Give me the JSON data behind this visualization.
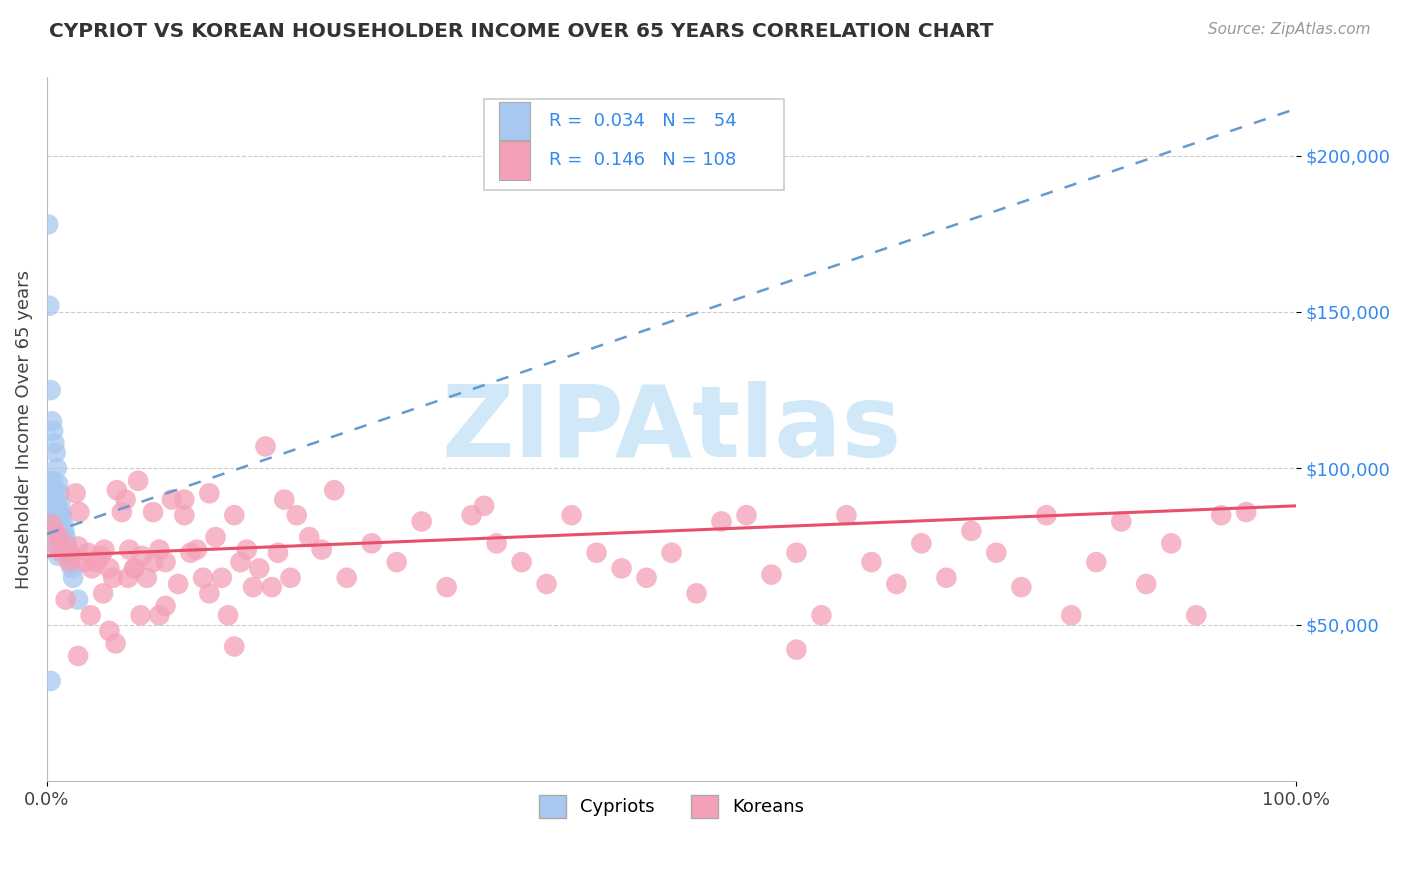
{
  "title": "CYPRIOT VS KOREAN HOUSEHOLDER INCOME OVER 65 YEARS CORRELATION CHART",
  "source": "Source: ZipAtlas.com",
  "ylabel": "Householder Income Over 65 years",
  "xlim": [
    0,
    1.0
  ],
  "ylim": [
    0,
    225000
  ],
  "yticks": [
    50000,
    100000,
    150000,
    200000
  ],
  "ytick_labels": [
    "$50,000",
    "$100,000",
    "$150,000",
    "$200,000"
  ],
  "legend_R_cypriot": "0.034",
  "legend_N_cypriot": "54",
  "legend_R_korean": "0.146",
  "legend_N_korean": "108",
  "color_cypriot": "#a8c8f0",
  "color_korean": "#f4a0b8",
  "color_trend_cypriot": "#6699cc",
  "color_trend_korean": "#e8506a",
  "color_title": "#333333",
  "color_source": "#999999",
  "color_ytick_labels": "#3388ee",
  "color_legend_values": "#3388ee",
  "watermark_text": "ZIPAtlas",
  "watermark_color": "#d0e8f8",
  "background_color": "#ffffff",
  "cypriot_x": [
    0.001,
    0.002,
    0.002,
    0.003,
    0.003,
    0.003,
    0.004,
    0.004,
    0.004,
    0.005,
    0.005,
    0.005,
    0.005,
    0.006,
    0.006,
    0.006,
    0.006,
    0.007,
    0.007,
    0.007,
    0.008,
    0.008,
    0.008,
    0.009,
    0.009,
    0.009,
    0.01,
    0.01,
    0.01,
    0.011,
    0.011,
    0.012,
    0.012,
    0.013,
    0.013,
    0.014,
    0.015,
    0.015,
    0.016,
    0.017,
    0.018,
    0.019,
    0.02,
    0.021,
    0.002,
    0.003,
    0.004,
    0.005,
    0.006,
    0.007,
    0.008,
    0.009,
    0.025,
    0.003
  ],
  "cypriot_y": [
    178000,
    152000,
    82000,
    125000,
    95000,
    88000,
    115000,
    92000,
    86000,
    112000,
    96000,
    90000,
    84000,
    108000,
    93000,
    88000,
    83000,
    105000,
    90000,
    85000,
    100000,
    88000,
    83000,
    95000,
    87000,
    82000,
    92000,
    86000,
    80000,
    88000,
    82000,
    85000,
    80000,
    83000,
    78000,
    80000,
    78000,
    75000,
    76000,
    74000,
    72000,
    70000,
    68000,
    65000,
    92000,
    88000,
    84000,
    82000,
    80000,
    78000,
    75000,
    72000,
    58000,
    32000
  ],
  "korean_x": [
    0.004,
    0.006,
    0.008,
    0.01,
    0.012,
    0.015,
    0.018,
    0.02,
    0.023,
    0.026,
    0.03,
    0.033,
    0.036,
    0.04,
    0.043,
    0.046,
    0.05,
    0.053,
    0.056,
    0.06,
    0.063,
    0.066,
    0.07,
    0.073,
    0.076,
    0.08,
    0.085,
    0.09,
    0.095,
    0.1,
    0.11,
    0.12,
    0.13,
    0.14,
    0.15,
    0.16,
    0.17,
    0.18,
    0.19,
    0.2,
    0.21,
    0.22,
    0.23,
    0.24,
    0.26,
    0.28,
    0.3,
    0.32,
    0.34,
    0.36,
    0.38,
    0.4,
    0.42,
    0.44,
    0.46,
    0.48,
    0.5,
    0.52,
    0.54,
    0.56,
    0.58,
    0.6,
    0.62,
    0.64,
    0.66,
    0.68,
    0.7,
    0.72,
    0.74,
    0.76,
    0.78,
    0.8,
    0.82,
    0.84,
    0.86,
    0.88,
    0.9,
    0.92,
    0.94,
    0.96,
    0.015,
    0.025,
    0.035,
    0.045,
    0.055,
    0.065,
    0.075,
    0.085,
    0.095,
    0.105,
    0.115,
    0.125,
    0.135,
    0.145,
    0.155,
    0.165,
    0.175,
    0.185,
    0.195,
    0.025,
    0.05,
    0.07,
    0.09,
    0.11,
    0.13,
    0.15,
    0.35,
    0.6
  ],
  "korean_y": [
    82000,
    80000,
    75000,
    78000,
    73000,
    75000,
    70000,
    72000,
    92000,
    86000,
    70000,
    73000,
    68000,
    70000,
    72000,
    74000,
    68000,
    65000,
    93000,
    86000,
    90000,
    74000,
    68000,
    96000,
    72000,
    65000,
    86000,
    74000,
    70000,
    90000,
    85000,
    74000,
    92000,
    65000,
    85000,
    74000,
    68000,
    62000,
    90000,
    85000,
    78000,
    74000,
    93000,
    65000,
    76000,
    70000,
    83000,
    62000,
    85000,
    76000,
    70000,
    63000,
    85000,
    73000,
    68000,
    65000,
    73000,
    60000,
    83000,
    85000,
    66000,
    73000,
    53000,
    85000,
    70000,
    63000,
    76000,
    65000,
    80000,
    73000,
    62000,
    85000,
    53000,
    70000,
    83000,
    63000,
    76000,
    53000,
    85000,
    86000,
    58000,
    40000,
    53000,
    60000,
    44000,
    65000,
    53000,
    70000,
    56000,
    63000,
    73000,
    65000,
    78000,
    53000,
    70000,
    62000,
    107000,
    73000,
    65000,
    75000,
    48000,
    68000,
    53000,
    90000,
    60000,
    43000,
    88000,
    42000
  ],
  "trend_cypriot_x0": 0.0,
  "trend_cypriot_y0": 79000,
  "trend_cypriot_x1": 1.0,
  "trend_cypriot_y1": 215000,
  "trend_korean_x0": 0.0,
  "trend_korean_y0": 72000,
  "trend_korean_x1": 1.0,
  "trend_korean_y1": 88000
}
